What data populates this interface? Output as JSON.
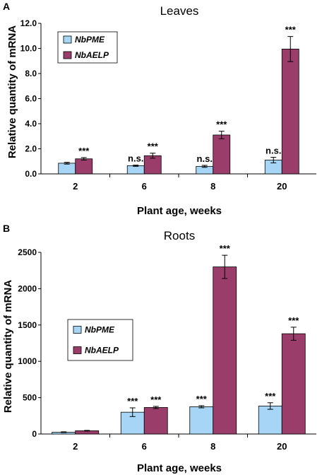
{
  "chart_data": [
    {
      "panel": "A",
      "type": "bar",
      "title": "Leaves",
      "xlabel": "Plant age, weeks",
      "ylabel": "Relative quantity of mRNA",
      "categories": [
        "2",
        "6",
        "8",
        "20"
      ],
      "ylim": [
        0,
        12
      ],
      "yticks": [
        "0.0",
        "2.0",
        "4.0",
        "6.0",
        "8.0",
        "10.0",
        "12.0"
      ],
      "legend_position": "top-left",
      "grid": false,
      "series": [
        {
          "name": "NbPME",
          "color": "#a6d5f5",
          "values": [
            0.85,
            0.65,
            0.6,
            1.1
          ],
          "errors": [
            0.07,
            0.05,
            0.08,
            0.22
          ],
          "annotations": [
            "",
            "n.s.",
            "n.s.",
            "n.s."
          ]
        },
        {
          "name": "NbAELP",
          "color": "#9b3d6a",
          "values": [
            1.2,
            1.45,
            3.1,
            9.95
          ],
          "errors": [
            0.1,
            0.2,
            0.3,
            1.0
          ],
          "annotations": [
            "***",
            "***",
            "***",
            "***"
          ]
        }
      ]
    },
    {
      "panel": "B",
      "type": "bar",
      "title": "Roots",
      "xlabel": "Plant age, weeks",
      "ylabel": "Relative quantity of mRNA",
      "categories": [
        "2",
        "6",
        "8",
        "20"
      ],
      "ylim": [
        0,
        2500
      ],
      "yticks": [
        "0",
        "500",
        "1000",
        "1500",
        "2000",
        "2500"
      ],
      "legend_position": "left",
      "grid": false,
      "series": [
        {
          "name": "NbPME",
          "color": "#a6d5f5",
          "values": [
            25,
            300,
            375,
            385
          ],
          "errors": [
            5,
            60,
            15,
            45
          ],
          "annotations": [
            "",
            "***",
            "***",
            "***"
          ]
        },
        {
          "name": "NbAELP",
          "color": "#9b3d6a",
          "values": [
            45,
            365,
            2300,
            1380
          ],
          "errors": [
            5,
            15,
            160,
            90
          ],
          "annotations": [
            "",
            "***",
            "***",
            "***"
          ]
        }
      ]
    }
  ]
}
